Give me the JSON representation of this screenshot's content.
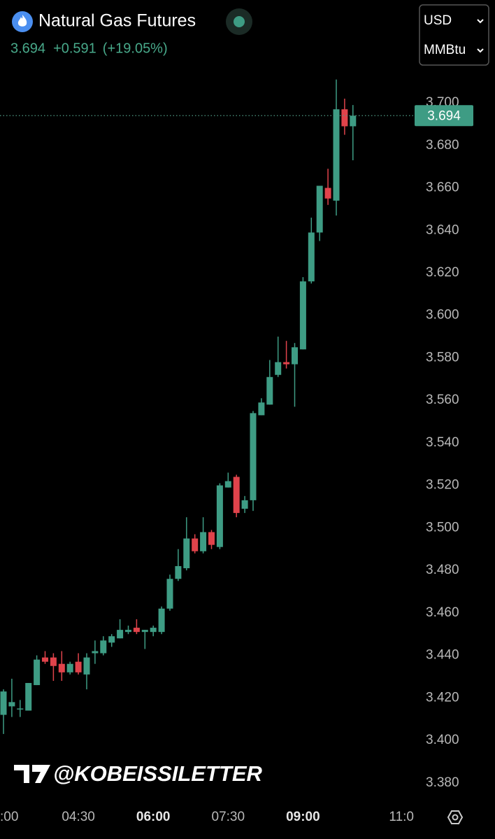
{
  "header": {
    "title": "Natural Gas Futures",
    "change": "+0.591",
    "change_percent": "(+19.05%)"
  },
  "controls": {
    "currency": "USD",
    "unit": "MMBtu"
  },
  "watermark": "@KOBEISSILETTER",
  "chart_data": {
    "type": "candlestick",
    "categories": [
      ":00",
      null,
      null,
      null,
      null,
      null,
      null,
      null,
      null,
      "04:30",
      null,
      null,
      null,
      null,
      null,
      null,
      null,
      null,
      "06:00",
      null,
      null,
      null,
      null,
      null,
      null,
      null,
      null,
      "07:30",
      null,
      null,
      null,
      null,
      null,
      null,
      null,
      null,
      "09:00",
      null,
      null,
      null,
      null,
      null,
      null,
      null,
      null,
      null,
      null,
      null,
      "11:0"
    ],
    "bold_categories": [
      "06:00",
      "09:00"
    ],
    "open": [
      3.412,
      3.416,
      3.415,
      3.414,
      3.426,
      3.439,
      3.439,
      3.436,
      3.432,
      3.437,
      3.431,
      3.441,
      3.441,
      3.446,
      3.448,
      3.451,
      3.453,
      3.451,
      3.451,
      3.451,
      3.462,
      3.476,
      3.481,
      3.495,
      3.489,
      3.498,
      3.491,
      3.519,
      3.524,
      3.509,
      3.513,
      3.553,
      3.558,
      3.572,
      3.578,
      3.577,
      3.584,
      3.616,
      3.639,
      3.66,
      3.654,
      3.697,
      3.689,
      null,
      null,
      null,
      null,
      null,
      null
    ],
    "high": [
      3.424,
      3.429,
      3.419,
      3.427,
      3.44,
      3.442,
      3.441,
      3.442,
      3.437,
      3.441,
      3.441,
      3.447,
      3.449,
      3.45,
      3.457,
      3.454,
      3.457,
      3.452,
      3.454,
      3.463,
      3.478,
      3.49,
      3.505,
      3.497,
      3.505,
      3.499,
      3.521,
      3.526,
      3.525,
      3.515,
      3.555,
      3.561,
      3.579,
      3.59,
      3.588,
      3.587,
      3.618,
      3.646,
      3.661,
      3.669,
      3.711,
      3.702,
      3.699,
      null,
      null,
      null,
      null,
      null,
      null
    ],
    "low": [
      3.403,
      3.411,
      3.411,
      3.414,
      3.426,
      3.436,
      3.428,
      3.428,
      3.431,
      3.431,
      3.424,
      3.436,
      3.44,
      3.444,
      3.448,
      3.45,
      3.45,
      3.443,
      3.449,
      3.45,
      3.461,
      3.475,
      3.48,
      3.488,
      3.488,
      3.49,
      3.49,
      3.519,
      3.505,
      3.507,
      3.508,
      3.553,
      3.558,
      3.571,
      3.575,
      3.557,
      3.584,
      3.615,
      3.635,
      3.652,
      3.647,
      3.685,
      3.673,
      null,
      null,
      null,
      null,
      null,
      null
    ],
    "close": [
      3.423,
      3.418,
      3.415,
      3.427,
      3.438,
      3.437,
      3.435,
      3.432,
      3.436,
      3.432,
      3.439,
      3.442,
      3.447,
      3.449,
      3.452,
      3.452,
      3.451,
      3.452,
      3.453,
      3.462,
      3.476,
      3.482,
      3.495,
      3.489,
      3.498,
      3.492,
      3.52,
      3.522,
      3.507,
      3.513,
      3.554,
      3.559,
      3.571,
      3.578,
      3.577,
      3.585,
      3.616,
      3.639,
      3.661,
      3.655,
      3.697,
      3.689,
      3.694,
      null,
      null,
      null,
      null,
      null,
      null
    ],
    "up_color": "#3e9c84",
    "down_color": "#e0434b",
    "price_line": 3.694,
    "ylim": [
      3.373,
      3.7155
    ],
    "yticks": [
      {
        "value": 3.38,
        "label": "3.380"
      },
      {
        "value": 3.4,
        "label": "3.400"
      },
      {
        "value": 3.42,
        "label": "3.420"
      },
      {
        "value": 3.44,
        "label": "3.440"
      },
      {
        "value": 3.46,
        "label": "3.460"
      },
      {
        "value": 3.48,
        "label": "3.480"
      },
      {
        "value": 3.5,
        "label": "3.500"
      },
      {
        "value": 3.52,
        "label": "3.520"
      },
      {
        "value": 3.54,
        "label": "3.540"
      },
      {
        "value": 3.56,
        "label": "3.560"
      },
      {
        "value": 3.58,
        "label": "3.580"
      },
      {
        "value": 3.6,
        "label": "3.600"
      },
      {
        "value": 3.62,
        "label": "3.620"
      },
      {
        "value": 3.64,
        "label": "3.640"
      },
      {
        "value": 3.66,
        "label": "3.660"
      },
      {
        "value": 3.68,
        "label": "3.680"
      },
      {
        "value": 3.7,
        "label": "3.700"
      }
    ],
    "grid": false
  }
}
